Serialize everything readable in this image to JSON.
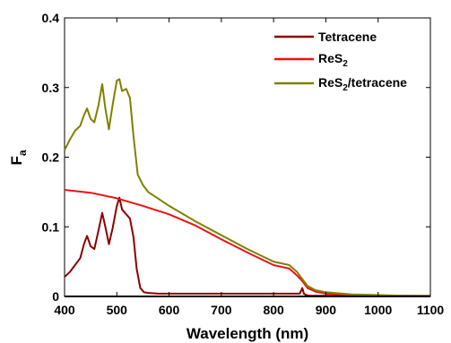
{
  "chart_data": {
    "type": "line",
    "title": "",
    "xlabel": "Wavelength (nm)",
    "ylabel": "F",
    "ylabel_sub": "a",
    "xlim": [
      400,
      1100
    ],
    "ylim": [
      0,
      0.4
    ],
    "xticks": [
      "400",
      "500",
      "600",
      "700",
      "800",
      "900",
      "1000",
      "1100"
    ],
    "yticks": [
      "0",
      "0.1",
      "0.2",
      "0.3",
      "0.4"
    ],
    "grid": false,
    "legend_position": "top-right",
    "series": [
      {
        "name": "Tetracene",
        "color": "#8b0000",
        "x": [
          400,
          410,
          420,
          430,
          437,
          443,
          450,
          457,
          465,
          472,
          478,
          485,
          492,
          500,
          505,
          510,
          518,
          525,
          532,
          538,
          545,
          552,
          560,
          580,
          600,
          700,
          800,
          850,
          855,
          858,
          862,
          870,
          900,
          1000,
          1100
        ],
        "y": [
          0.028,
          0.035,
          0.045,
          0.055,
          0.075,
          0.087,
          0.072,
          0.068,
          0.095,
          0.12,
          0.1,
          0.075,
          0.098,
          0.13,
          0.142,
          0.125,
          0.118,
          0.112,
          0.085,
          0.04,
          0.012,
          0.006,
          0.005,
          0.004,
          0.004,
          0.004,
          0.004,
          0.004,
          0.012,
          0.004,
          0.002,
          0.001,
          0.001,
          0.001,
          0.001
        ]
      },
      {
        "name": "ReS",
        "name_sub": "2",
        "color": "#ee1111",
        "x": [
          400,
          450,
          500,
          550,
          600,
          650,
          700,
          750,
          800,
          830,
          845,
          855,
          865,
          880,
          900,
          950,
          1000,
          1050,
          1100
        ],
        "y": [
          0.153,
          0.149,
          0.141,
          0.13,
          0.118,
          0.102,
          0.082,
          0.063,
          0.045,
          0.04,
          0.03,
          0.022,
          0.012,
          0.007,
          0.004,
          0.002,
          0.001,
          0.001,
          0.0005
        ]
      },
      {
        "name": "ReS",
        "name_sub": "2",
        "name_suffix": "/tetracene",
        "color": "#808000",
        "x": [
          400,
          410,
          420,
          430,
          437,
          443,
          450,
          457,
          465,
          472,
          478,
          485,
          492,
          500,
          505,
          510,
          518,
          525,
          532,
          540,
          550,
          560,
          580,
          600,
          650,
          700,
          750,
          800,
          830,
          845,
          855,
          865,
          880,
          900,
          950,
          1000,
          1050,
          1100
        ],
        "y": [
          0.21,
          0.225,
          0.238,
          0.245,
          0.26,
          0.27,
          0.255,
          0.25,
          0.275,
          0.305,
          0.27,
          0.24,
          0.275,
          0.31,
          0.312,
          0.295,
          0.298,
          0.285,
          0.23,
          0.175,
          0.16,
          0.15,
          0.14,
          0.13,
          0.108,
          0.088,
          0.068,
          0.05,
          0.045,
          0.035,
          0.025,
          0.015,
          0.009,
          0.006,
          0.003,
          0.002,
          0.001,
          0.0008
        ]
      },
      {
        "name": "",
        "color": "#000000",
        "x": [
          400,
          1100
        ],
        "y": [
          0,
          0
        ]
      }
    ]
  }
}
